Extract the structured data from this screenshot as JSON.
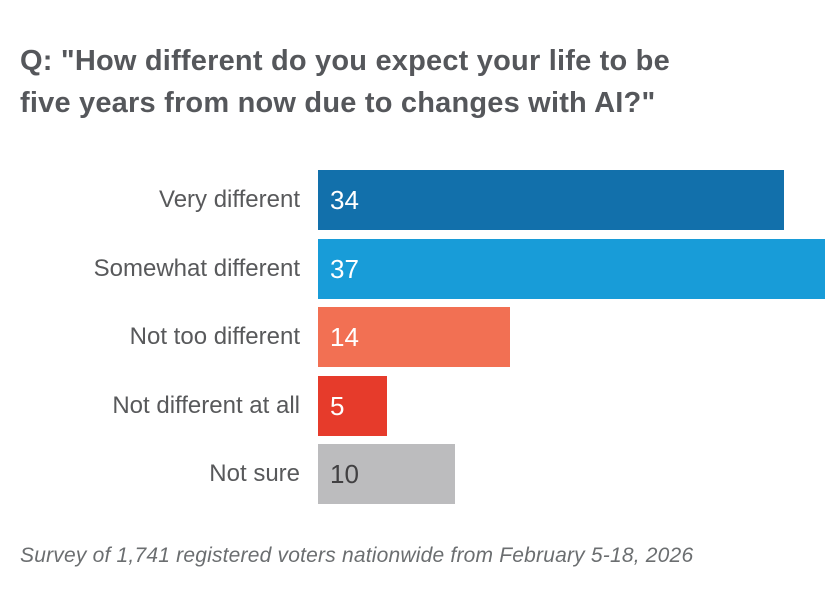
{
  "title": {
    "line1": "Q: \"How different do you expect your life to be",
    "line2": "five years from now due to changes with AI?\"",
    "full": "Q: \"How different do you expect your life to be five years from now due to changes with AI?\""
  },
  "chart_data": {
    "type": "bar",
    "orientation": "horizontal",
    "title": "Q: \"How different do you expect your life to be five years from now due to changes with AI?\"",
    "categories": [
      "Very different",
      "Somewhat different",
      "Not too different",
      "Not different at all",
      "Not sure"
    ],
    "values": [
      34,
      37,
      14,
      5,
      10
    ],
    "xlim": [
      0,
      37
    ],
    "grid": false,
    "legend": false,
    "value_labels_inside_bars": true,
    "rows": [
      {
        "label": "Very different",
        "value": 34,
        "color": "#1270ab",
        "value_color": "#ffffff"
      },
      {
        "label": "Somewhat different",
        "value": 37,
        "color": "#189cd8",
        "value_color": "#ffffff"
      },
      {
        "label": "Not too different",
        "value": 14,
        "color": "#f27053",
        "value_color": "#ffffff"
      },
      {
        "label": "Not different at all",
        "value": 5,
        "color": "#e63b2b",
        "value_color": "#ffffff"
      },
      {
        "label": "Not sure",
        "value": 10,
        "color": "#bcbcbe",
        "value_color": "#414042"
      }
    ]
  },
  "footer": {
    "text": "Survey of 1,741 registered voters nationwide from February 5-18, 2026"
  },
  "colors": {
    "background": "#ffffff",
    "title_text": "#55575b",
    "label_text": "#58595b",
    "footer_text": "#6b6e70",
    "bar_dark_blue": "#1270ab",
    "bar_light_blue": "#189cd8",
    "bar_salmon": "#f27053",
    "bar_red": "#e63b2b",
    "bar_gray": "#bcbcbe"
  }
}
